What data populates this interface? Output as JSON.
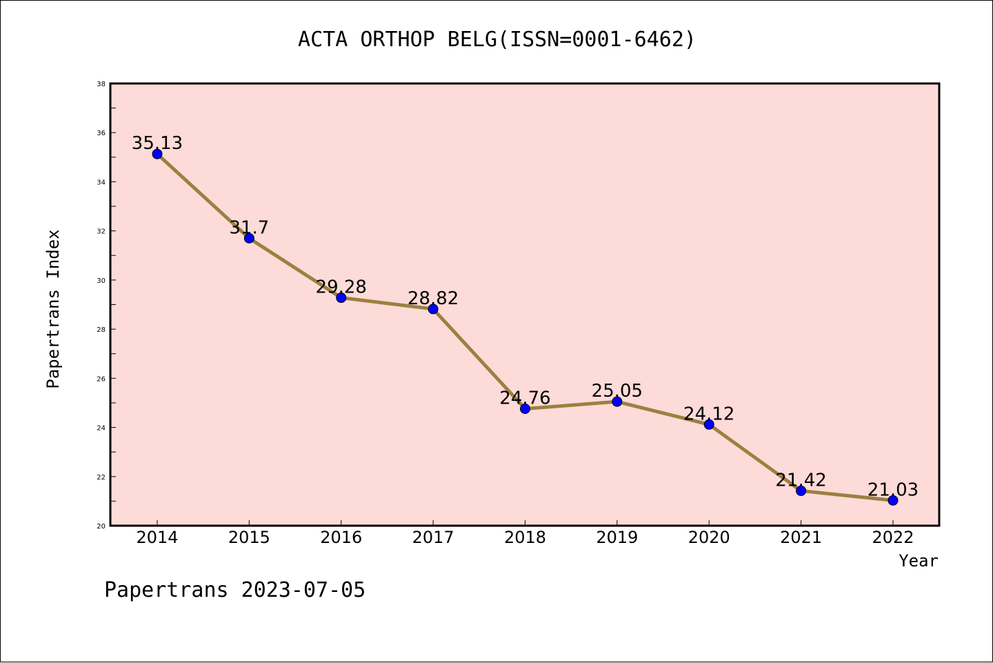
{
  "chart_data": {
    "type": "line",
    "title": "ACTA ORTHOP BELG(ISSN=0001-6462)",
    "xlabel": "Year",
    "ylabel": "Papertrans Index",
    "categories": [
      "2014",
      "2015",
      "2016",
      "2017",
      "2018",
      "2019",
      "2020",
      "2021",
      "2022"
    ],
    "values": [
      35.13,
      31.7,
      29.28,
      28.82,
      24.76,
      25.05,
      24.12,
      21.42,
      21.03
    ],
    "data_labels": [
      "35.13",
      "31.7",
      "29.28",
      "28.82",
      "24.76",
      "25.05",
      "24.12",
      "21.42",
      "21.03"
    ],
    "ylim": [
      20,
      38
    ],
    "yticks": [
      20,
      22,
      24,
      26,
      28,
      30,
      32,
      34,
      36,
      38
    ],
    "grid": false,
    "legend": "none",
    "colors": {
      "plot_background": "#fddbd8",
      "line": "#9a8140",
      "marker": "#0000ff",
      "axis": "#000000"
    }
  },
  "footer": {
    "text": "Papertrans 2023-07-05"
  }
}
